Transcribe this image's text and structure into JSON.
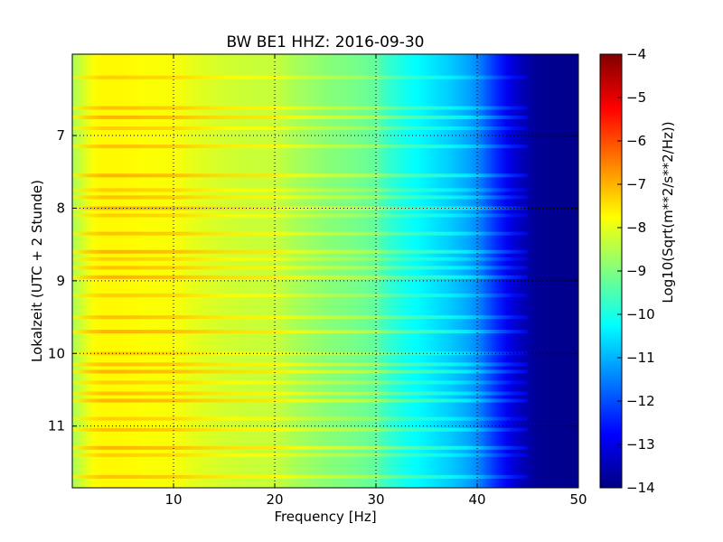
{
  "chart_data": {
    "type": "heatmap",
    "title": "BW BE1 HHZ: 2016-09-30",
    "xlabel": "Frequency [Hz]",
    "ylabel": "Lokalzeit (UTC + 2 Stunde)",
    "xlim": [
      0,
      50
    ],
    "ylim": [
      5.88,
      11.85
    ],
    "y_inverted": true,
    "x_ticks": [
      10,
      20,
      30,
      40,
      50
    ],
    "y_ticks": [
      7,
      8,
      9,
      10,
      11
    ],
    "grid": true,
    "colorbar": {
      "label": "Log10(Sqrt(m**2/s**2/Hz))",
      "colormap": "jet",
      "range": [
        -14,
        -4
      ],
      "ticks": [
        -4,
        -5,
        -6,
        -7,
        -8,
        -9,
        -10,
        -11,
        -12,
        -13,
        -14
      ]
    },
    "profile": {
      "frequency_hz": [
        0,
        1,
        2,
        3,
        5,
        8,
        10,
        12,
        15,
        18,
        20,
        22,
        25,
        28,
        30,
        31,
        33,
        35,
        37,
        39,
        40,
        41,
        42,
        43,
        44,
        45,
        46,
        50
      ],
      "level_log10": [
        -8.6,
        -8.2,
        -7.8,
        -7.7,
        -7.7,
        -7.8,
        -7.8,
        -8.0,
        -8.2,
        -8.3,
        -8.3,
        -8.6,
        -8.9,
        -9.1,
        -9.3,
        -9.7,
        -10.1,
        -10.4,
        -10.7,
        -11.1,
        -11.4,
        -11.9,
        -12.4,
        -12.9,
        -13.3,
        -13.6,
        -13.8,
        -13.9
      ]
    },
    "bright_bands_hour": [
      6.2,
      6.62,
      6.75,
      6.9,
      7.15,
      7.55,
      7.75,
      7.85,
      8.0,
      8.1,
      8.35,
      8.6,
      8.7,
      8.82,
      8.95,
      9.2,
      9.5,
      9.7,
      10.0,
      10.15,
      10.25,
      10.4,
      10.55,
      10.65,
      10.9,
      11.05,
      11.3,
      11.4,
      11.7
    ]
  }
}
